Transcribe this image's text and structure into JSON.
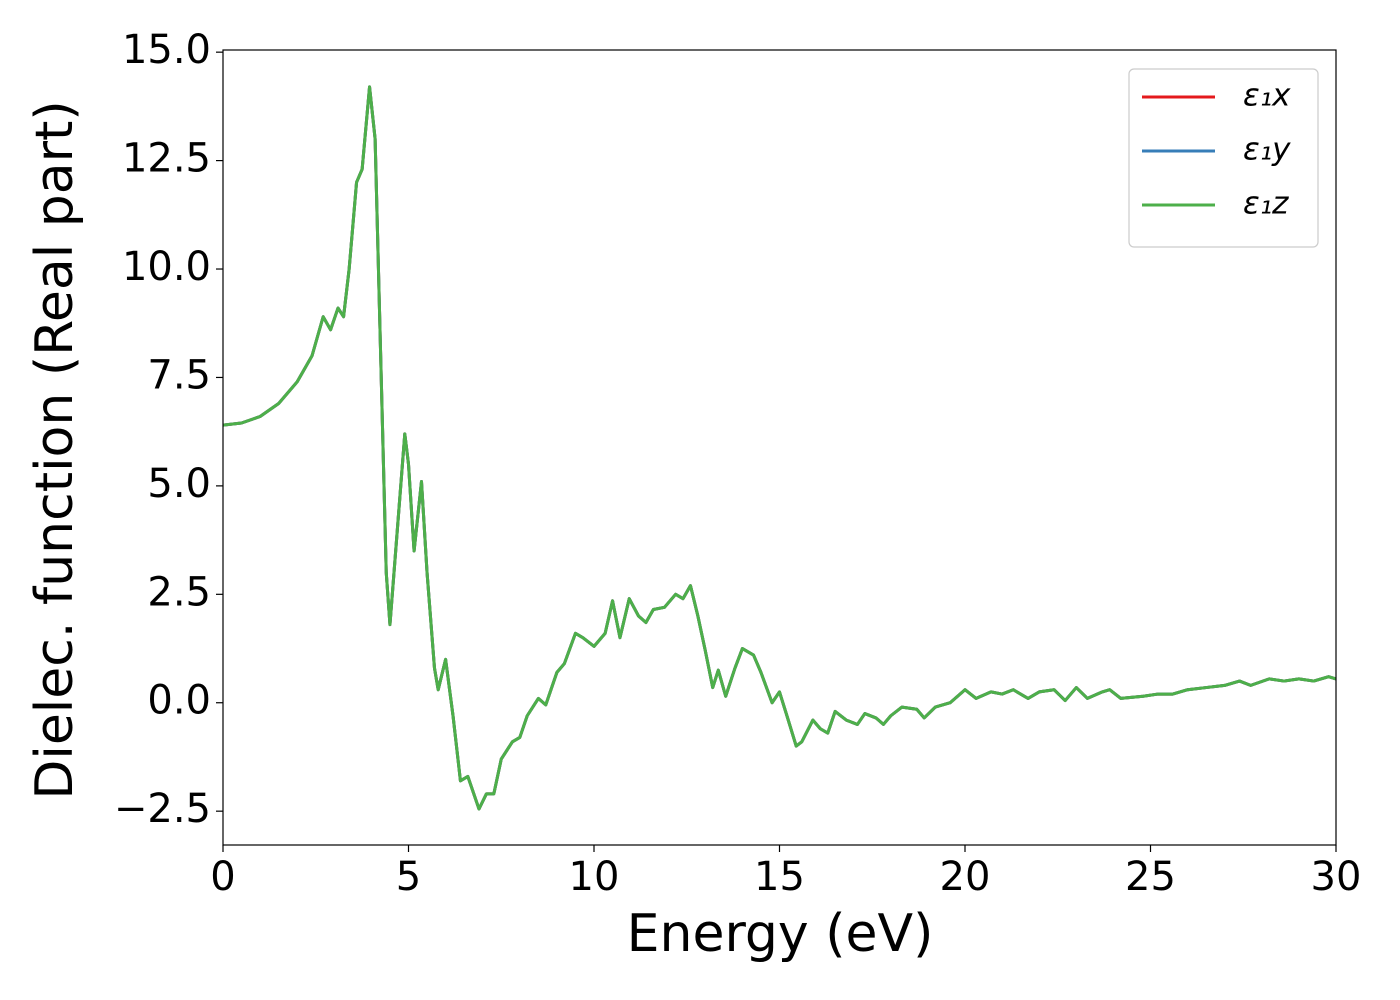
{
  "chart_data": {
    "type": "line",
    "xlabel": "Energy (eV)",
    "ylabel": "Dielec. function (Real part)",
    "x": [
      0,
      0.5,
      1.0,
      1.5,
      2.0,
      2.4,
      2.7,
      2.9,
      3.1,
      3.25,
      3.4,
      3.6,
      3.75,
      3.95,
      4.1,
      4.25,
      4.4,
      4.5,
      4.7,
      4.9,
      5.0,
      5.15,
      5.35,
      5.5,
      5.7,
      5.8,
      6.0,
      6.2,
      6.4,
      6.6,
      6.9,
      7.1,
      7.3,
      7.5,
      7.8,
      8.0,
      8.2,
      8.5,
      8.7,
      9.0,
      9.2,
      9.5,
      9.7,
      10.0,
      10.3,
      10.5,
      10.7,
      10.95,
      11.2,
      11.4,
      11.6,
      11.9,
      12.2,
      12.4,
      12.6,
      12.8,
      13.0,
      13.2,
      13.35,
      13.55,
      13.8,
      14.0,
      14.3,
      14.5,
      14.8,
      15.0,
      15.2,
      15.45,
      15.6,
      15.9,
      16.1,
      16.3,
      16.5,
      16.8,
      17.1,
      17.3,
      17.6,
      17.8,
      18.0,
      18.3,
      18.7,
      18.9,
      19.2,
      19.6,
      20.0,
      20.3,
      20.7,
      21.0,
      21.3,
      21.7,
      22.0,
      22.4,
      22.7,
      23.0,
      23.3,
      23.7,
      23.9,
      24.2,
      24.8,
      25.2,
      25.6,
      26.0,
      26.5,
      27.0,
      27.4,
      27.7,
      28.2,
      28.6,
      29.0,
      29.4,
      29.8,
      30.0
    ],
    "series": [
      {
        "name": "ε₁x",
        "color": "#e41a1c",
        "values": [
          6.4,
          6.45,
          6.6,
          6.9,
          7.4,
          8.0,
          8.9,
          8.6,
          9.1,
          8.9,
          10.0,
          12.0,
          12.3,
          14.2,
          13.0,
          8.0,
          3.0,
          1.8,
          4.0,
          6.2,
          5.5,
          3.5,
          5.1,
          3.0,
          0.8,
          0.3,
          1.0,
          -0.3,
          -1.8,
          -1.7,
          -2.45,
          -2.1,
          -2.1,
          -1.3,
          -0.9,
          -0.8,
          -0.3,
          0.1,
          -0.05,
          0.7,
          0.9,
          1.6,
          1.5,
          1.3,
          1.6,
          2.35,
          1.5,
          2.4,
          2.0,
          1.85,
          2.15,
          2.2,
          2.5,
          2.4,
          2.7,
          2.0,
          1.2,
          0.35,
          0.75,
          0.15,
          0.8,
          1.25,
          1.1,
          0.7,
          0.0,
          0.25,
          -0.3,
          -1.0,
          -0.9,
          -0.4,
          -0.6,
          -0.7,
          -0.2,
          -0.4,
          -0.5,
          -0.25,
          -0.35,
          -0.5,
          -0.3,
          -0.1,
          -0.15,
          -0.35,
          -0.1,
          0.0,
          0.3,
          0.1,
          0.25,
          0.2,
          0.3,
          0.1,
          0.25,
          0.3,
          0.05,
          0.35,
          0.1,
          0.25,
          0.3,
          0.1,
          0.15,
          0.2,
          0.2,
          0.3,
          0.35,
          0.4,
          0.5,
          0.4,
          0.55,
          0.5,
          0.55,
          0.5,
          0.6,
          0.55
        ]
      },
      {
        "name": "ε₁y",
        "color": "#377eb8",
        "values": [
          6.4,
          6.45,
          6.6,
          6.9,
          7.4,
          8.0,
          8.9,
          8.6,
          9.1,
          8.9,
          10.0,
          12.0,
          12.3,
          14.2,
          13.0,
          8.0,
          3.0,
          1.8,
          4.0,
          6.2,
          5.5,
          3.5,
          5.1,
          3.0,
          0.8,
          0.3,
          1.0,
          -0.3,
          -1.8,
          -1.7,
          -2.45,
          -2.1,
          -2.1,
          -1.3,
          -0.9,
          -0.8,
          -0.3,
          0.1,
          -0.05,
          0.7,
          0.9,
          1.6,
          1.5,
          1.3,
          1.6,
          2.35,
          1.5,
          2.4,
          2.0,
          1.85,
          2.15,
          2.2,
          2.5,
          2.4,
          2.7,
          2.0,
          1.2,
          0.35,
          0.75,
          0.15,
          0.8,
          1.25,
          1.1,
          0.7,
          0.0,
          0.25,
          -0.3,
          -1.0,
          -0.9,
          -0.4,
          -0.6,
          -0.7,
          -0.2,
          -0.4,
          -0.5,
          -0.25,
          -0.35,
          -0.5,
          -0.3,
          -0.1,
          -0.15,
          -0.35,
          -0.1,
          0.0,
          0.3,
          0.1,
          0.25,
          0.2,
          0.3,
          0.1,
          0.25,
          0.3,
          0.05,
          0.35,
          0.1,
          0.25,
          0.3,
          0.1,
          0.15,
          0.2,
          0.2,
          0.3,
          0.35,
          0.4,
          0.5,
          0.4,
          0.55,
          0.5,
          0.55,
          0.5,
          0.6,
          0.55
        ]
      },
      {
        "name": "ε₁z",
        "color": "#4daf4a",
        "values": [
          6.4,
          6.45,
          6.6,
          6.9,
          7.4,
          8.0,
          8.9,
          8.6,
          9.1,
          8.9,
          10.0,
          12.0,
          12.3,
          14.2,
          13.0,
          8.0,
          3.0,
          1.8,
          4.0,
          6.2,
          5.5,
          3.5,
          5.1,
          3.0,
          0.8,
          0.3,
          1.0,
          -0.3,
          -1.8,
          -1.7,
          -2.45,
          -2.1,
          -2.1,
          -1.3,
          -0.9,
          -0.8,
          -0.3,
          0.1,
          -0.05,
          0.7,
          0.9,
          1.6,
          1.5,
          1.3,
          1.6,
          2.35,
          1.5,
          2.4,
          2.0,
          1.85,
          2.15,
          2.2,
          2.5,
          2.4,
          2.7,
          2.0,
          1.2,
          0.35,
          0.75,
          0.15,
          0.8,
          1.25,
          1.1,
          0.7,
          0.0,
          0.25,
          -0.3,
          -1.0,
          -0.9,
          -0.4,
          -0.6,
          -0.7,
          -0.2,
          -0.4,
          -0.5,
          -0.25,
          -0.35,
          -0.5,
          -0.3,
          -0.1,
          -0.15,
          -0.35,
          -0.1,
          0.0,
          0.3,
          0.1,
          0.25,
          0.2,
          0.3,
          0.1,
          0.25,
          0.3,
          0.05,
          0.35,
          0.1,
          0.25,
          0.3,
          0.1,
          0.15,
          0.2,
          0.2,
          0.3,
          0.35,
          0.4,
          0.5,
          0.4,
          0.55,
          0.5,
          0.55,
          0.5,
          0.6,
          0.55
        ]
      }
    ],
    "xlim": [
      0,
      30
    ],
    "xticks": [
      0,
      5,
      10,
      15,
      20,
      25,
      30
    ],
    "ylim": [
      -3.28,
      15.05
    ],
    "yticks": [
      {
        "value": -2.5,
        "label": "−2.5"
      },
      {
        "value": 0,
        "label": "0.0"
      },
      2.5,
      {
        "value": 5,
        "label": "5.0"
      },
      7.5,
      {
        "value": 10,
        "label": "10.0"
      },
      12.5,
      {
        "value": 15,
        "label": "15.0"
      }
    ],
    "legend": "upper right",
    "grid": false
  }
}
